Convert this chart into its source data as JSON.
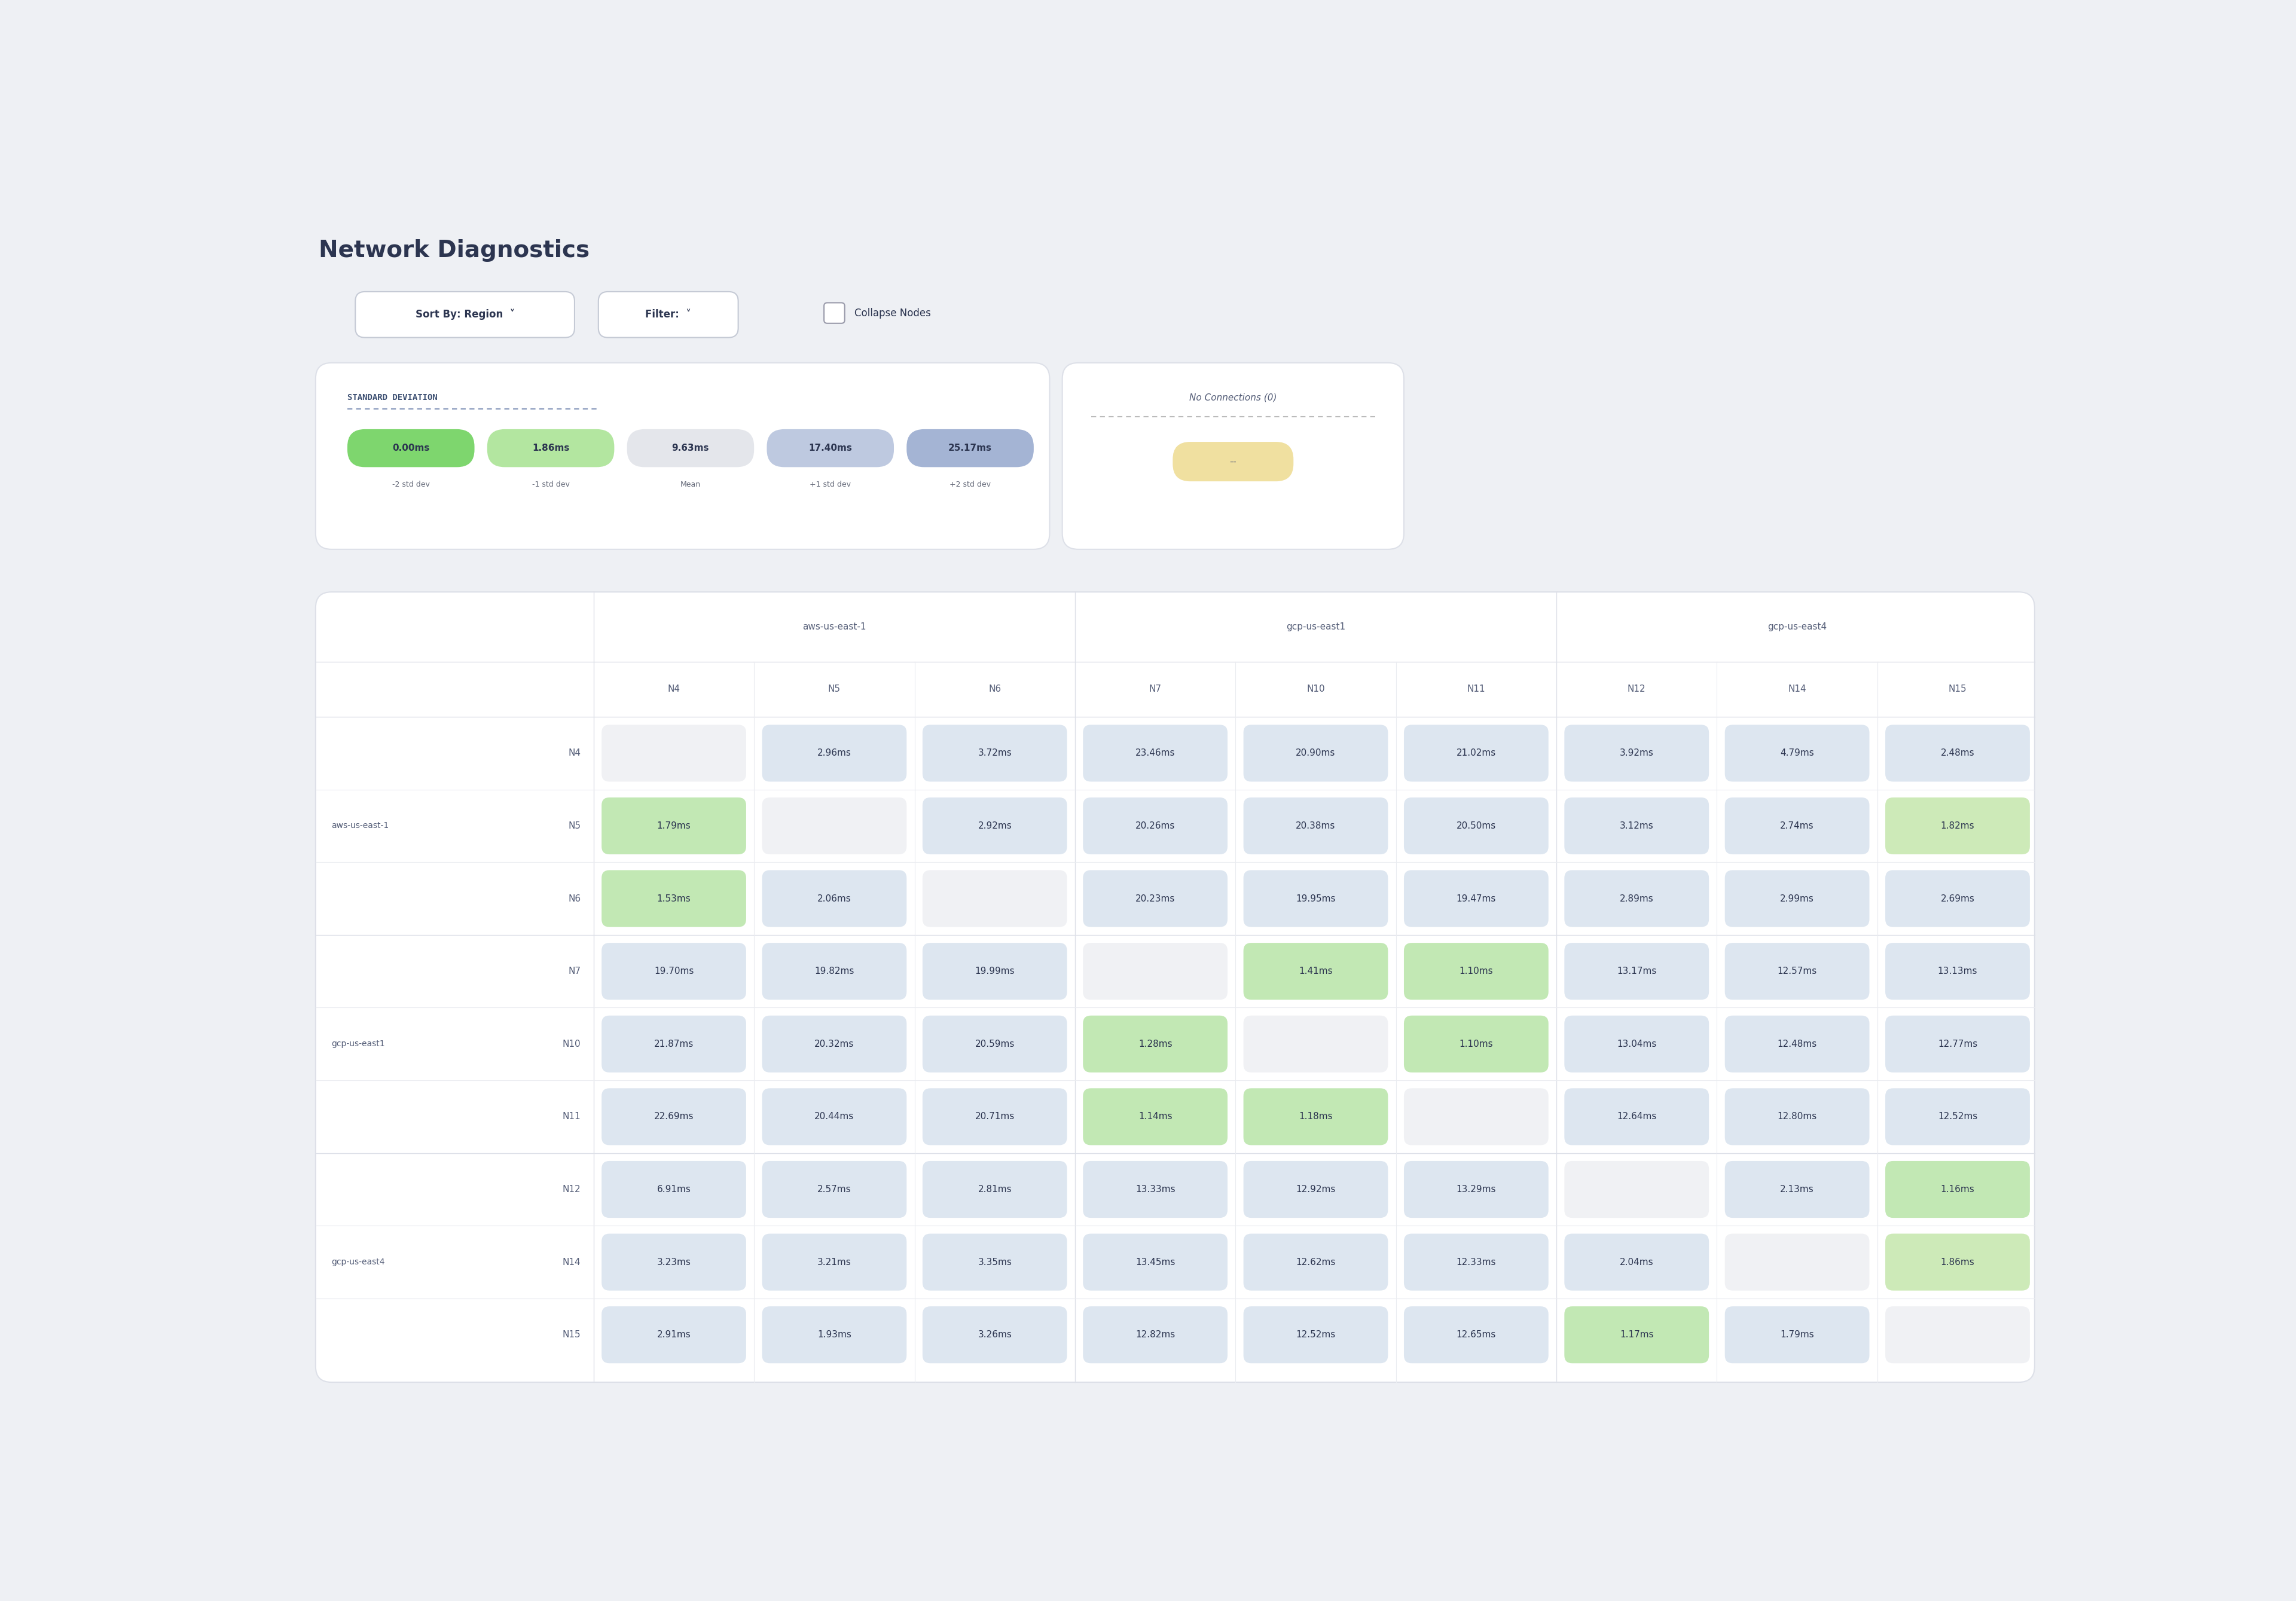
{
  "title": "Network Diagnostics",
  "bg_color": "#eef0f4",
  "title_color": "#2c3550",
  "sort_btn_text": "Sort By: Region  ˅",
  "filter_btn_text": "Filter:  ˅",
  "collapse_text": "Collapse Nodes",
  "std_dev_title": "STANDARD DEVIATION",
  "std_dev_values": [
    "0.00ms",
    "1.86ms",
    "9.63ms",
    "17.40ms",
    "25.17ms"
  ],
  "std_dev_labels": [
    "-2 std dev",
    "-1 std dev",
    "Mean",
    "+1 std dev",
    "+2 std dev"
  ],
  "std_dev_pill_colors": [
    "#7ed66e",
    "#b3e6a0",
    "#e4e6eb",
    "#bec9e0",
    "#a4b4d4"
  ],
  "no_connections_label": "No Connections (0)",
  "no_connections_pill_color": "#f0e0a0",
  "col_groups": [
    {
      "region": "aws-us-east-1",
      "nodes": [
        "N4",
        "N5",
        "N6"
      ]
    },
    {
      "region": "gcp-us-east1",
      "nodes": [
        "N7",
        "N10",
        "N11"
      ]
    },
    {
      "region": "gcp-us-east4",
      "nodes": [
        "N12",
        "N14",
        "N15"
      ]
    }
  ],
  "row_groups": [
    {
      "region": "aws-us-east-1",
      "nodes": [
        "N4",
        "N5",
        "N6"
      ]
    },
    {
      "region": "gcp-us-east1",
      "nodes": [
        "N7",
        "N10",
        "N11"
      ]
    },
    {
      "region": "gcp-us-east4",
      "nodes": [
        "N12",
        "N14",
        "N15"
      ]
    }
  ],
  "matrix": [
    [
      "",
      "2.96ms",
      "3.72ms",
      "23.46ms",
      "20.90ms",
      "21.02ms",
      "3.92ms",
      "4.79ms",
      "2.48ms"
    ],
    [
      "1.79ms",
      "",
      "2.92ms",
      "20.26ms",
      "20.38ms",
      "20.50ms",
      "3.12ms",
      "2.74ms",
      "1.82ms"
    ],
    [
      "1.53ms",
      "2.06ms",
      "",
      "20.23ms",
      "19.95ms",
      "19.47ms",
      "2.89ms",
      "2.99ms",
      "2.69ms"
    ],
    [
      "19.70ms",
      "19.82ms",
      "19.99ms",
      "",
      "1.41ms",
      "1.10ms",
      "13.17ms",
      "12.57ms",
      "13.13ms"
    ],
    [
      "21.87ms",
      "20.32ms",
      "20.59ms",
      "1.28ms",
      "",
      "1.10ms",
      "13.04ms",
      "12.48ms",
      "12.77ms"
    ],
    [
      "22.69ms",
      "20.44ms",
      "20.71ms",
      "1.14ms",
      "1.18ms",
      "",
      "12.64ms",
      "12.80ms",
      "12.52ms"
    ],
    [
      "6.91ms",
      "2.57ms",
      "2.81ms",
      "13.33ms",
      "12.92ms",
      "13.29ms",
      "",
      "2.13ms",
      "1.16ms"
    ],
    [
      "3.23ms",
      "3.21ms",
      "3.35ms",
      "13.45ms",
      "12.62ms",
      "12.33ms",
      "2.04ms",
      "",
      "1.86ms"
    ],
    [
      "2.91ms",
      "1.93ms",
      "3.26ms",
      "12.82ms",
      "12.52ms",
      "12.65ms",
      "1.17ms",
      "1.79ms",
      ""
    ]
  ],
  "cell_color_matrix": [
    [
      "diag",
      "blue",
      "blue",
      "blue",
      "blue",
      "blue",
      "blue",
      "blue",
      "blue"
    ],
    [
      "green",
      "diag",
      "blue",
      "blue",
      "blue",
      "blue",
      "blue",
      "blue",
      "green2"
    ],
    [
      "green",
      "blue",
      "diag",
      "blue",
      "blue",
      "blue",
      "blue",
      "blue",
      "blue"
    ],
    [
      "blue",
      "blue",
      "blue",
      "diag",
      "green",
      "green",
      "blue",
      "blue",
      "blue"
    ],
    [
      "blue",
      "blue",
      "blue",
      "green",
      "diag",
      "green",
      "blue",
      "blue",
      "blue"
    ],
    [
      "blue",
      "blue",
      "blue",
      "green",
      "green",
      "diag",
      "blue",
      "blue",
      "blue"
    ],
    [
      "blue",
      "blue",
      "blue",
      "blue",
      "blue",
      "blue",
      "diag",
      "blue",
      "green"
    ],
    [
      "blue",
      "blue",
      "blue",
      "blue",
      "blue",
      "blue",
      "blue",
      "diag",
      "green2"
    ],
    [
      "blue",
      "blue",
      "blue",
      "blue",
      "blue",
      "blue",
      "green",
      "blue",
      "diag"
    ]
  ],
  "color_map": {
    "diag": "#f0f1f4",
    "blue": "#dde6f0",
    "green": "#c2e8b4",
    "green2": "#cdeab8"
  }
}
